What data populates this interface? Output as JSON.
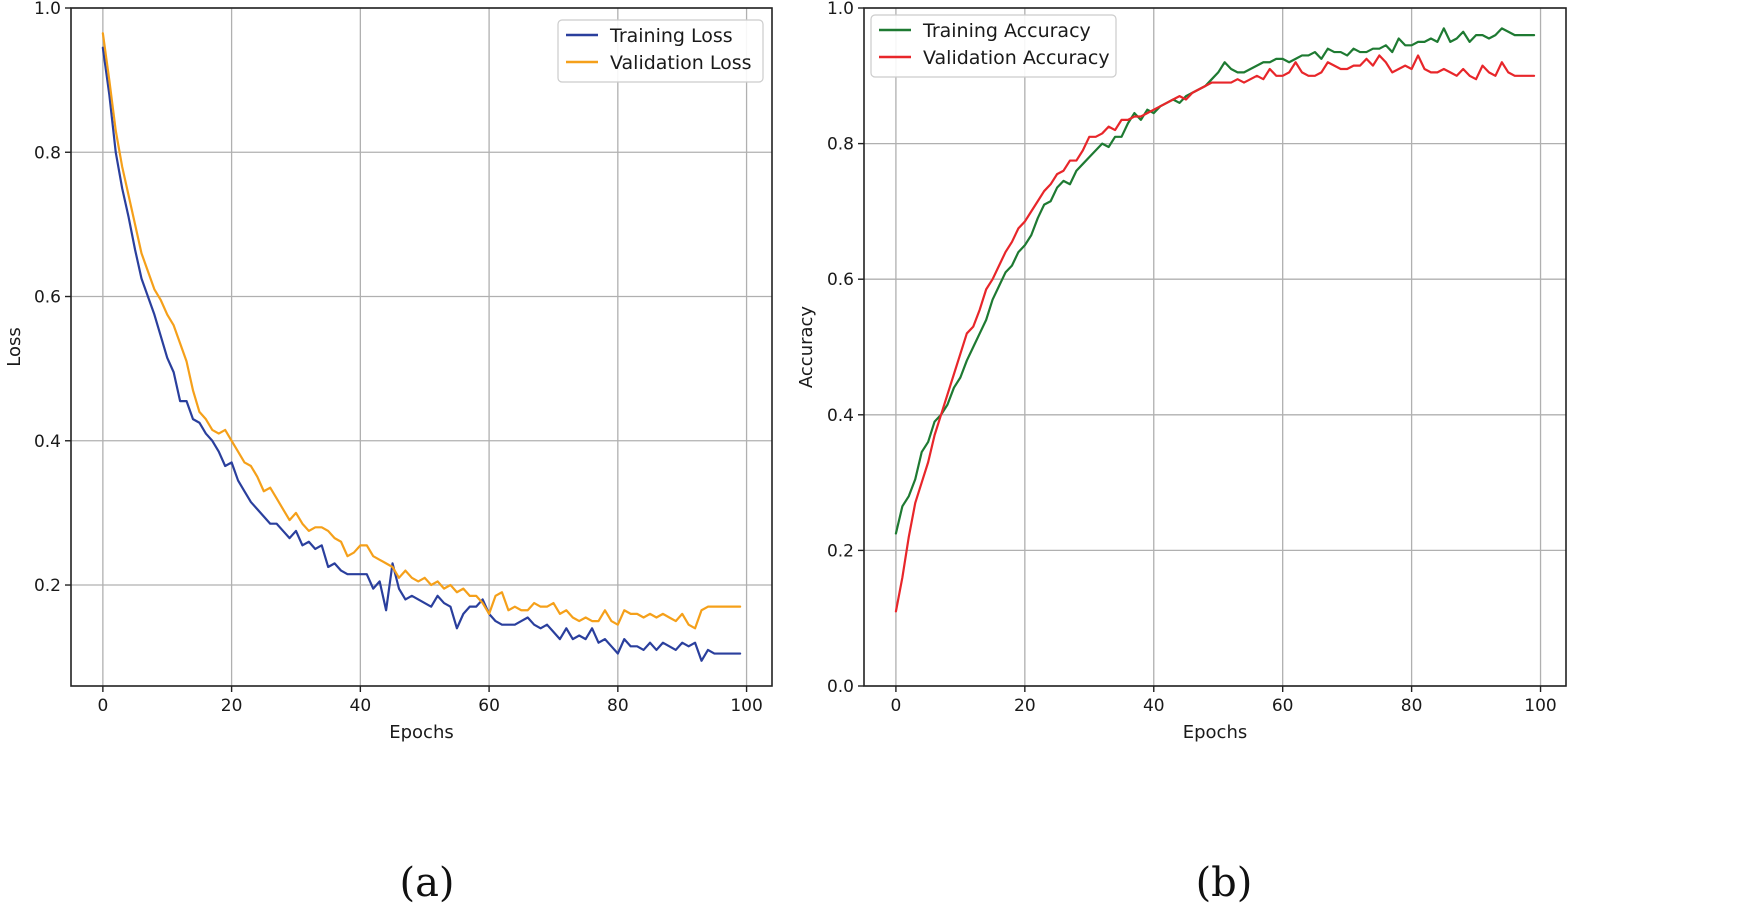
{
  "panel_labels": [
    "(a)",
    "(b)"
  ],
  "chart_data": [
    {
      "type": "line",
      "title": "",
      "xlabel": "Epochs",
      "ylabel": "Loss",
      "xlim": [
        -4.95,
        103.95
      ],
      "ylim": [
        0.06,
        1.0
      ],
      "xticks": [
        0,
        20,
        40,
        60,
        80,
        100
      ],
      "yticks": [
        0.2,
        0.4,
        0.6,
        0.8,
        1.0
      ],
      "grid": true,
      "legend_position": "top-right",
      "x": [
        0,
        1,
        2,
        3,
        4,
        5,
        6,
        7,
        8,
        9,
        10,
        11,
        12,
        13,
        14,
        15,
        16,
        17,
        18,
        19,
        20,
        21,
        22,
        23,
        24,
        25,
        26,
        27,
        28,
        29,
        30,
        31,
        32,
        33,
        34,
        35,
        36,
        37,
        38,
        39,
        40,
        41,
        42,
        43,
        44,
        45,
        46,
        47,
        48,
        49,
        50,
        51,
        52,
        53,
        54,
        55,
        56,
        57,
        58,
        59,
        60,
        61,
        62,
        63,
        64,
        65,
        66,
        67,
        68,
        69,
        70,
        71,
        72,
        73,
        74,
        75,
        76,
        77,
        78,
        79,
        80,
        81,
        82,
        83,
        84,
        85,
        86,
        87,
        88,
        89,
        90,
        91,
        92,
        93,
        94,
        95,
        96,
        97,
        98,
        99
      ],
      "series": [
        {
          "name": "Training Loss",
          "color": "#2a3f9d",
          "values": [
            0.945,
            0.88,
            0.8,
            0.75,
            0.71,
            0.665,
            0.625,
            0.6,
            0.575,
            0.545,
            0.515,
            0.495,
            0.455,
            0.455,
            0.43,
            0.425,
            0.41,
            0.4,
            0.385,
            0.365,
            0.37,
            0.345,
            0.33,
            0.315,
            0.305,
            0.295,
            0.285,
            0.285,
            0.275,
            0.265,
            0.275,
            0.255,
            0.26,
            0.25,
            0.255,
            0.225,
            0.23,
            0.22,
            0.215,
            0.215,
            0.215,
            0.215,
            0.195,
            0.205,
            0.165,
            0.23,
            0.195,
            0.18,
            0.185,
            0.18,
            0.175,
            0.17,
            0.185,
            0.175,
            0.17,
            0.14,
            0.16,
            0.17,
            0.17,
            0.18,
            0.16,
            0.15,
            0.145,
            0.145,
            0.145,
            0.15,
            0.155,
            0.145,
            0.14,
            0.145,
            0.135,
            0.125,
            0.14,
            0.125,
            0.13,
            0.125,
            0.14,
            0.12,
            0.125,
            0.115,
            0.105,
            0.125,
            0.115,
            0.115,
            0.11,
            0.12,
            0.11,
            0.12,
            0.115,
            0.11,
            0.12,
            0.115,
            0.12,
            0.095,
            0.11,
            0.105,
            0.105,
            0.105,
            0.105,
            0.105
          ]
        },
        {
          "name": "Validation Loss",
          "color": "#f5a01a",
          "values": [
            0.965,
            0.9,
            0.83,
            0.78,
            0.74,
            0.7,
            0.66,
            0.635,
            0.61,
            0.595,
            0.575,
            0.56,
            0.535,
            0.51,
            0.47,
            0.44,
            0.43,
            0.415,
            0.41,
            0.415,
            0.4,
            0.385,
            0.37,
            0.365,
            0.35,
            0.33,
            0.335,
            0.32,
            0.305,
            0.29,
            0.3,
            0.285,
            0.275,
            0.28,
            0.28,
            0.275,
            0.265,
            0.26,
            0.24,
            0.245,
            0.255,
            0.255,
            0.24,
            0.235,
            0.23,
            0.225,
            0.21,
            0.22,
            0.21,
            0.205,
            0.21,
            0.2,
            0.205,
            0.195,
            0.2,
            0.19,
            0.195,
            0.185,
            0.185,
            0.175,
            0.16,
            0.185,
            0.19,
            0.165,
            0.17,
            0.165,
            0.165,
            0.175,
            0.17,
            0.17,
            0.175,
            0.16,
            0.165,
            0.155,
            0.15,
            0.155,
            0.15,
            0.15,
            0.165,
            0.15,
            0.145,
            0.165,
            0.16,
            0.16,
            0.155,
            0.16,
            0.155,
            0.16,
            0.155,
            0.15,
            0.16,
            0.145,
            0.14,
            0.165,
            0.17,
            0.17,
            0.17,
            0.17,
            0.17,
            0.17
          ]
        }
      ]
    },
    {
      "type": "line",
      "title": "",
      "xlabel": "Epochs",
      "ylabel": "Accuracy",
      "xlim": [
        -4.95,
        103.95
      ],
      "ylim": [
        0.0,
        1.0
      ],
      "xticks": [
        0,
        20,
        40,
        60,
        80,
        100
      ],
      "yticks": [
        0.0,
        0.2,
        0.4,
        0.6,
        0.8,
        1.0
      ],
      "grid": true,
      "legend_position": "top-left",
      "x": [
        0,
        1,
        2,
        3,
        4,
        5,
        6,
        7,
        8,
        9,
        10,
        11,
        12,
        13,
        14,
        15,
        16,
        17,
        18,
        19,
        20,
        21,
        22,
        23,
        24,
        25,
        26,
        27,
        28,
        29,
        30,
        31,
        32,
        33,
        34,
        35,
        36,
        37,
        38,
        39,
        40,
        41,
        42,
        43,
        44,
        45,
        46,
        47,
        48,
        49,
        50,
        51,
        52,
        53,
        54,
        55,
        56,
        57,
        58,
        59,
        60,
        61,
        62,
        63,
        64,
        65,
        66,
        67,
        68,
        69,
        70,
        71,
        72,
        73,
        74,
        75,
        76,
        77,
        78,
        79,
        80,
        81,
        82,
        83,
        84,
        85,
        86,
        87,
        88,
        89,
        90,
        91,
        92,
        93,
        94,
        95,
        96,
        97,
        98,
        99
      ],
      "series": [
        {
          "name": "Training Accuracy",
          "color": "#1e7a32",
          "values": [
            0.225,
            0.265,
            0.28,
            0.305,
            0.345,
            0.36,
            0.39,
            0.4,
            0.415,
            0.44,
            0.455,
            0.48,
            0.5,
            0.52,
            0.54,
            0.57,
            0.59,
            0.61,
            0.62,
            0.64,
            0.65,
            0.665,
            0.69,
            0.71,
            0.715,
            0.735,
            0.745,
            0.74,
            0.76,
            0.77,
            0.78,
            0.79,
            0.8,
            0.795,
            0.81,
            0.81,
            0.83,
            0.845,
            0.835,
            0.85,
            0.845,
            0.855,
            0.86,
            0.865,
            0.86,
            0.87,
            0.875,
            0.88,
            0.885,
            0.895,
            0.905,
            0.92,
            0.91,
            0.905,
            0.905,
            0.91,
            0.915,
            0.92,
            0.92,
            0.925,
            0.925,
            0.92,
            0.925,
            0.93,
            0.93,
            0.935,
            0.925,
            0.94,
            0.935,
            0.935,
            0.93,
            0.94,
            0.935,
            0.935,
            0.94,
            0.94,
            0.945,
            0.935,
            0.955,
            0.945,
            0.945,
            0.95,
            0.95,
            0.955,
            0.95,
            0.97,
            0.95,
            0.955,
            0.965,
            0.95,
            0.96,
            0.96,
            0.955,
            0.96,
            0.97,
            0.965,
            0.96,
            0.96,
            0.96,
            0.96
          ]
        },
        {
          "name": "Validation Accuracy",
          "color": "#e8262a",
          "values": [
            0.11,
            0.16,
            0.22,
            0.27,
            0.3,
            0.33,
            0.37,
            0.4,
            0.43,
            0.46,
            0.49,
            0.52,
            0.53,
            0.555,
            0.585,
            0.6,
            0.62,
            0.64,
            0.655,
            0.675,
            0.685,
            0.7,
            0.715,
            0.73,
            0.74,
            0.755,
            0.76,
            0.775,
            0.775,
            0.79,
            0.81,
            0.81,
            0.815,
            0.825,
            0.82,
            0.835,
            0.835,
            0.84,
            0.84,
            0.845,
            0.85,
            0.855,
            0.86,
            0.865,
            0.87,
            0.865,
            0.875,
            0.88,
            0.885,
            0.89,
            0.89,
            0.89,
            0.89,
            0.895,
            0.89,
            0.895,
            0.9,
            0.895,
            0.91,
            0.9,
            0.9,
            0.905,
            0.92,
            0.905,
            0.9,
            0.9,
            0.905,
            0.92,
            0.915,
            0.91,
            0.91,
            0.915,
            0.915,
            0.925,
            0.915,
            0.93,
            0.92,
            0.905,
            0.91,
            0.915,
            0.91,
            0.93,
            0.91,
            0.905,
            0.905,
            0.91,
            0.905,
            0.9,
            0.91,
            0.9,
            0.895,
            0.915,
            0.905,
            0.9,
            0.92,
            0.905,
            0.9,
            0.9,
            0.9,
            0.9
          ]
        }
      ]
    }
  ]
}
